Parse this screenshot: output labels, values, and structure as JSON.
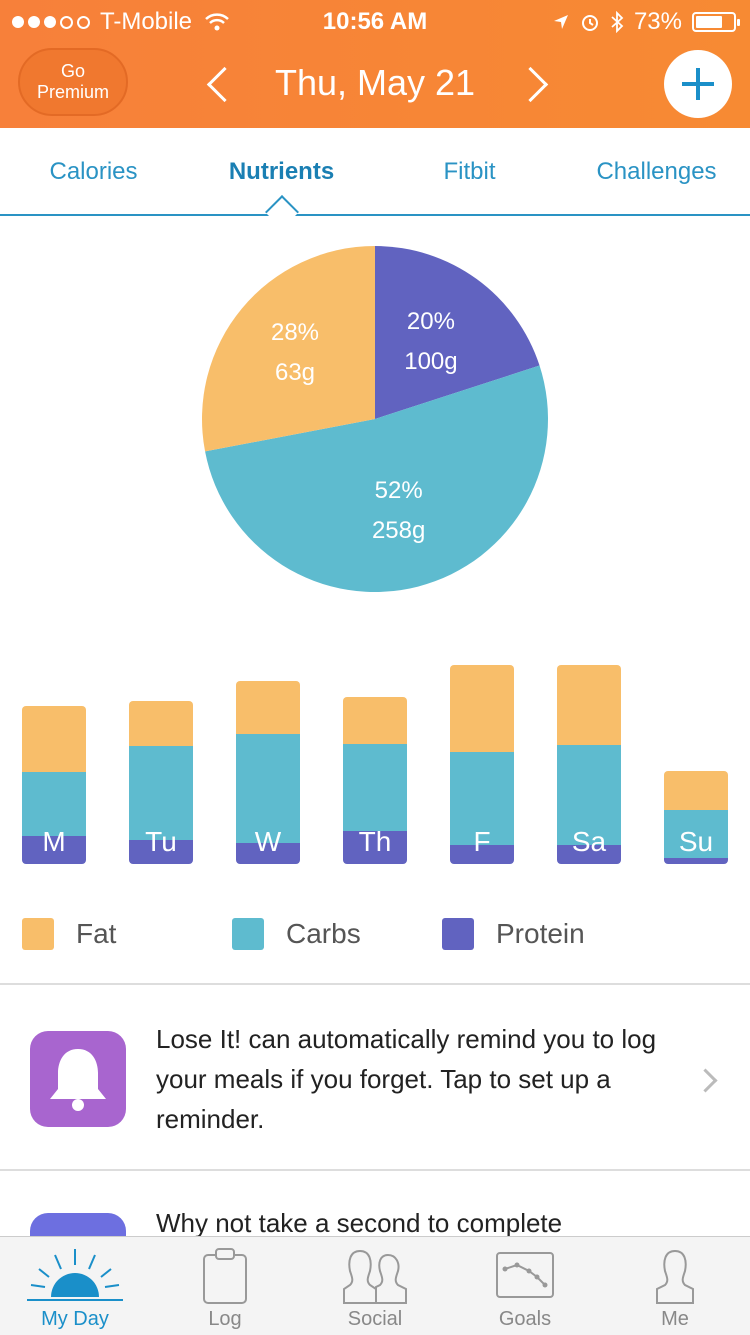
{
  "status": {
    "carrier": "T-Mobile",
    "time": "10:56 AM",
    "battery": "73%",
    "battery_level": 0.73
  },
  "header": {
    "premium_label_1": "Go",
    "premium_label_2": "Premium",
    "date": "Thu, May 21"
  },
  "tabs": [
    {
      "label": "Calories"
    },
    {
      "label": "Nutrients"
    },
    {
      "label": "Fitbit"
    },
    {
      "label": "Challenges"
    }
  ],
  "colors": {
    "fat": "#f8be6a",
    "carbs": "#5ebbcf",
    "protein": "#6163c0",
    "accent": "#1a8fc9",
    "header": "#f78a33"
  },
  "chart_data": [
    {
      "type": "pie",
      "slices": [
        {
          "name": "Protein",
          "percent": 20,
          "grams": 100,
          "pct_label": "20%",
          "g_label": "100g"
        },
        {
          "name": "Carbs",
          "percent": 52,
          "grams": 258,
          "pct_label": "52%",
          "g_label": "258g"
        },
        {
          "name": "Fat",
          "percent": 28,
          "grams": 63,
          "pct_label": "28%",
          "g_label": "63g"
        }
      ]
    },
    {
      "type": "bar",
      "stacked": true,
      "categories": [
        "M",
        "Tu",
        "W",
        "Th",
        "F",
        "Sa",
        "Su"
      ],
      "series": [
        {
          "name": "Protein",
          "values": [
            28,
            24,
            21,
            33,
            19,
            19,
            6
          ]
        },
        {
          "name": "Carbs",
          "values": [
            64,
            94,
            109,
            87,
            93,
            100,
            48
          ]
        },
        {
          "name": "Fat",
          "values": [
            66,
            45,
            53,
            47,
            87,
            80,
            39
          ]
        }
      ]
    }
  ],
  "legend": [
    {
      "label": "Fat"
    },
    {
      "label": "Carbs"
    },
    {
      "label": "Protein"
    }
  ],
  "cards": [
    {
      "text": "Lose It! can automatically remind you to log your meals if you forget. Tap to set up a reminder.",
      "icon": "bell-icon",
      "icon_color": "#a865cf"
    },
    {
      "text": "Why not take a second to complete",
      "icon": "profile-icon",
      "icon_color": "#6d6fe0"
    }
  ],
  "tabbar": [
    {
      "label": "My Day",
      "icon": "sunrise-icon"
    },
    {
      "label": "Log",
      "icon": "clipboard-icon"
    },
    {
      "label": "Social",
      "icon": "people-icon"
    },
    {
      "label": "Goals",
      "icon": "chart-icon"
    },
    {
      "label": "Me",
      "icon": "person-icon"
    }
  ]
}
